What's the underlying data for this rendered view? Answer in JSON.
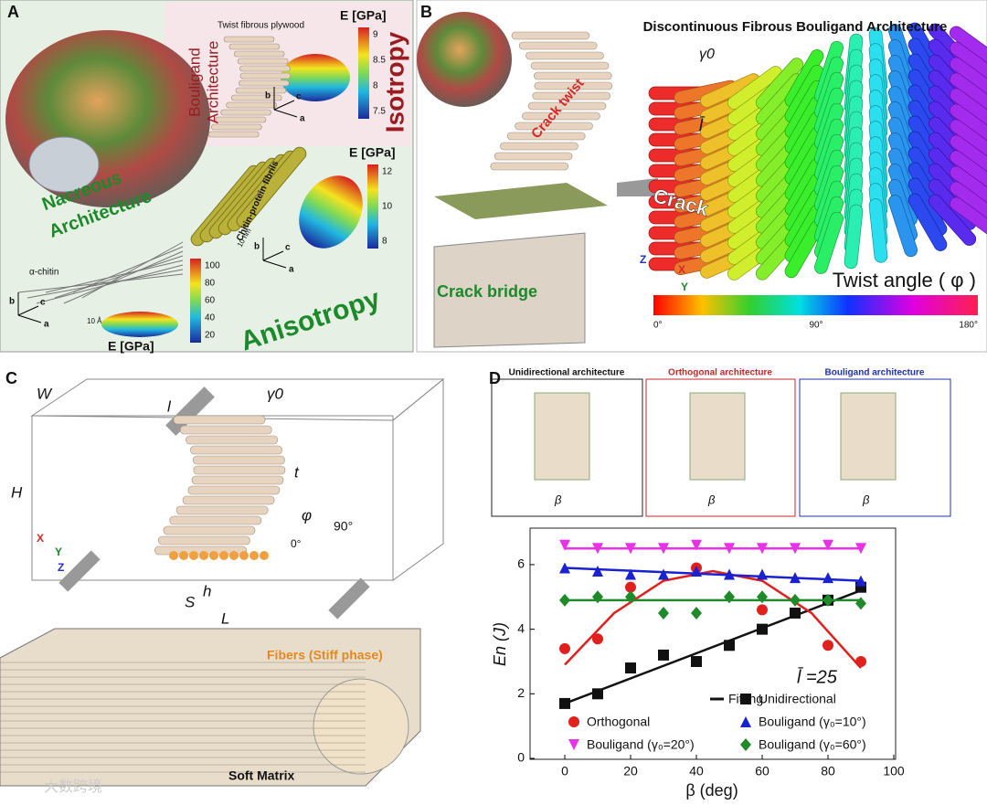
{
  "panel_a": {
    "label": "A",
    "plywood_title": "Twist fibrous plywood",
    "bouligand_label": [
      "Bouligand",
      "Architecture"
    ],
    "isotropy": "Isotropy",
    "nacreous_label": [
      "Nacreous",
      "Architecture"
    ],
    "fibrils_label": "Chitin-protein fibrils",
    "scale_nm": "10 nm",
    "chitin_label": "α-chitin",
    "scale_angstrom": "10 Å",
    "anisotropy": "Anisotropy",
    "axes": [
      "b",
      "c",
      "a"
    ],
    "colorbars": [
      {
        "title": "E [GPa]",
        "ticks": [
          9,
          8.5,
          8,
          7.5
        ]
      },
      {
        "title": "E [GPa]",
        "ticks": [
          12,
          10,
          8
        ]
      },
      {
        "title": "E [GPa]",
        "ticks": [
          100,
          80,
          60,
          40,
          20
        ]
      }
    ]
  },
  "panel_b": {
    "label": "B",
    "title": "Discontinuous Fibrous Bouligand Architecture",
    "gamma": "γ0",
    "crack_twist": "Crack twist",
    "crack": "Crack",
    "fiber_length": "l̄",
    "crack_bridge": "Crack bridge",
    "twist_label": "Twist angle ( φ )",
    "twist_ticks": [
      "0°",
      "90°",
      "180°"
    ],
    "axes": [
      "Z",
      "X",
      "Y"
    ]
  },
  "panel_c": {
    "label": "C",
    "dims": [
      "W",
      "H",
      "l",
      "γ0",
      "t",
      "h",
      "S",
      "L"
    ],
    "phi": "φ",
    "angles": [
      "90°",
      "0°"
    ],
    "axes": [
      "X",
      "Y",
      "Z"
    ],
    "fibers": "Fibers (Stiff phase)",
    "matrix": "Soft Matrix"
  },
  "panel_d": {
    "label": "D",
    "boxes": [
      "Unidirectional architecture",
      "Orthogonal architecture",
      "Bouligand architecture"
    ],
    "beta": "β"
  },
  "chart_data": {
    "type": "scatter",
    "x_label": "β (deg)",
    "y_label": "En (J)",
    "annotation": "l̄ =25",
    "xlim": [
      0,
      100
    ],
    "ylim": [
      0,
      7.3
    ],
    "xticks": [
      0,
      20,
      40,
      60,
      80,
      100
    ],
    "yticks": [
      0,
      2,
      4,
      6
    ],
    "fit_name": "Fitting",
    "series": [
      {
        "name": "Unidirectional",
        "color": "#111111",
        "marker": "square",
        "x": [
          0,
          10,
          20,
          30,
          40,
          50,
          60,
          70,
          80,
          90
        ],
        "values": [
          1.7,
          2.0,
          2.8,
          3.2,
          3.0,
          3.5,
          4.0,
          4.5,
          4.9,
          5.3
        ],
        "fit": {
          "x": [
            0,
            90
          ],
          "values": [
            1.7,
            5.2
          ]
        }
      },
      {
        "name": "Orthogonal",
        "color": "#e0201c",
        "marker": "circle",
        "x": [
          0,
          10,
          20,
          40,
          60,
          80,
          90
        ],
        "values": [
          3.4,
          3.7,
          5.3,
          5.9,
          4.6,
          3.5,
          3.0
        ],
        "fit": {
          "x": [
            0,
            15,
            30,
            45,
            60,
            75,
            90
          ],
          "values": [
            2.9,
            4.5,
            5.5,
            5.8,
            5.5,
            4.5,
            2.8
          ]
        }
      },
      {
        "name": "Bouligand (γ₀=10°)",
        "color": "#1a22d0",
        "marker": "triangle-up",
        "x": [
          0,
          10,
          20,
          30,
          40,
          50,
          60,
          70,
          80,
          90
        ],
        "values": [
          5.9,
          5.8,
          5.7,
          5.7,
          5.8,
          5.7,
          5.7,
          5.6,
          5.6,
          5.5
        ],
        "fit": {
          "x": [
            0,
            90
          ],
          "values": [
            5.9,
            5.5
          ]
        }
      },
      {
        "name": "Bouligand (γ₀=20°)",
        "color": "#e832e8",
        "marker": "triangle-down",
        "x": [
          0,
          10,
          20,
          30,
          40,
          50,
          60,
          70,
          80,
          90
        ],
        "values": [
          6.6,
          6.5,
          6.5,
          6.5,
          6.6,
          6.5,
          6.5,
          6.5,
          6.6,
          6.5
        ],
        "fit": {
          "x": [
            0,
            90
          ],
          "values": [
            6.5,
            6.5
          ]
        }
      },
      {
        "name": "Bouligand (γ₀=60°)",
        "color": "#1f8a2a",
        "marker": "diamond",
        "x": [
          0,
          10,
          20,
          30,
          40,
          50,
          60,
          70,
          80,
          90
        ],
        "values": [
          4.9,
          5.0,
          5.0,
          4.5,
          4.5,
          5.0,
          5.0,
          4.9,
          4.9,
          4.8
        ],
        "fit": {
          "x": [
            0,
            90
          ],
          "values": [
            4.9,
            4.9
          ]
        }
      }
    ]
  },
  "watermark": "大数跨境"
}
